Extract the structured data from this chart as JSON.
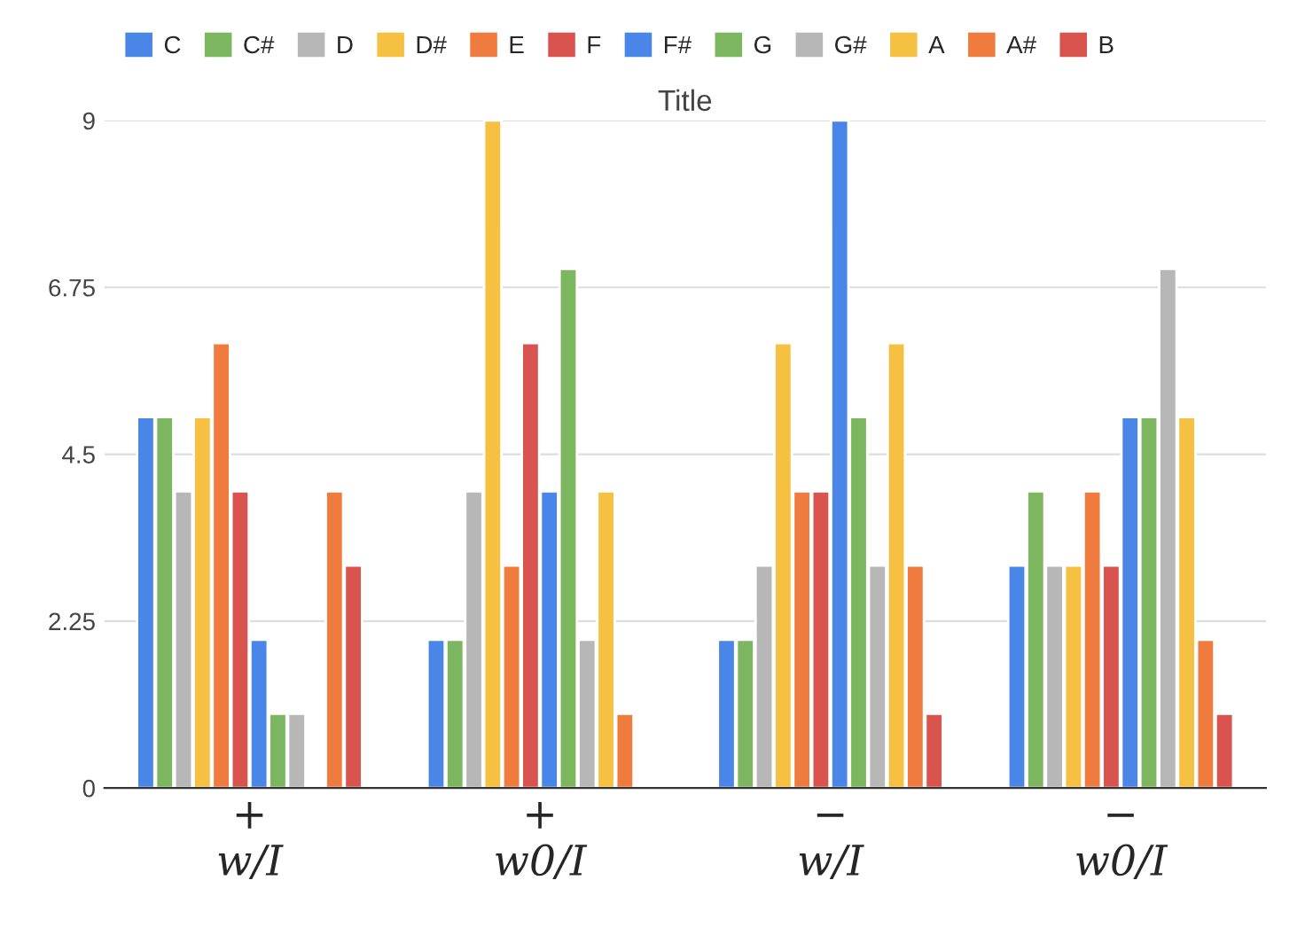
{
  "chart_data": {
    "type": "bar",
    "title": "Title",
    "categories": [
      "+\nw/I",
      "+\nw0/I",
      "−\nw/I",
      "−\nw0/I"
    ],
    "series": [
      {
        "name": "C",
        "color": "#4a86e8",
        "values": [
          5,
          2,
          2,
          3
        ]
      },
      {
        "name": "C#",
        "color": "#7cb65f",
        "values": [
          5,
          2,
          2,
          4
        ]
      },
      {
        "name": "D",
        "color": "#b7b7b7",
        "values": [
          4,
          4,
          3,
          3
        ]
      },
      {
        "name": "D#",
        "color": "#f6c142",
        "values": [
          5,
          9,
          6,
          3
        ]
      },
      {
        "name": "E",
        "color": "#f07b3f",
        "values": [
          6,
          3,
          4,
          4
        ]
      },
      {
        "name": "F",
        "color": "#d9534f",
        "values": [
          4,
          6,
          4,
          3
        ]
      },
      {
        "name": "F#",
        "color": "#4a86e8",
        "values": [
          2,
          4,
          9,
          5
        ]
      },
      {
        "name": "G",
        "color": "#7cb65f",
        "values": [
          1,
          7,
          5,
          5
        ]
      },
      {
        "name": "G#",
        "color": "#b7b7b7",
        "values": [
          1,
          2,
          3,
          7
        ]
      },
      {
        "name": "A",
        "color": "#f6c142",
        "values": [
          null,
          4,
          6,
          5
        ]
      },
      {
        "name": "A#",
        "color": "#f07b3f",
        "values": [
          4,
          1,
          3,
          2
        ]
      },
      {
        "name": "B",
        "color": "#d9534f",
        "values": [
          3,
          null,
          1,
          1
        ]
      }
    ],
    "ylim": [
      0,
      9
    ],
    "yticks": [
      0,
      2.25,
      4.5,
      6.75,
      9
    ],
    "grid": "y",
    "legend": "top"
  }
}
